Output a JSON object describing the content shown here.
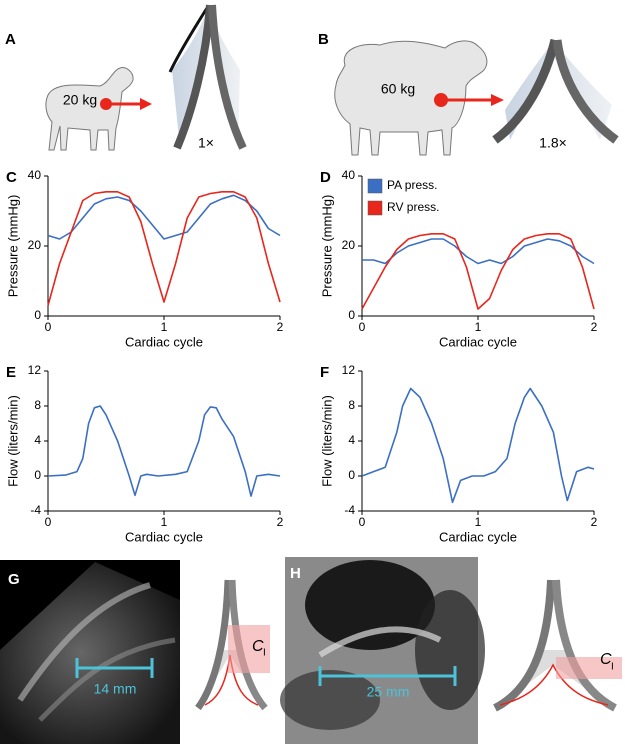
{
  "chart_data": [
    {
      "type": "line",
      "panel": "C",
      "xlabel": "Cardiac cycle",
      "ylabel": "Pressure (mmHg)",
      "xlim": [
        0,
        2
      ],
      "ylim": [
        0,
        40
      ],
      "xticks": [
        0,
        1,
        2
      ],
      "yticks": [
        0,
        20,
        40
      ],
      "x": [
        0,
        0.1,
        0.2,
        0.3,
        0.4,
        0.5,
        0.6,
        0.7,
        0.8,
        0.9,
        1.0,
        1.1,
        1.2,
        1.3,
        1.4,
        1.5,
        1.6,
        1.7,
        1.8,
        1.9,
        2.0
      ],
      "series": [
        {
          "color": "#3b6fc4",
          "values": [
            23,
            22,
            24,
            28,
            32,
            33.5,
            34,
            33,
            30,
            26,
            22,
            23,
            24,
            28,
            32,
            33.5,
            34.5,
            33,
            30,
            25,
            23
          ]
        },
        {
          "color": "#e8261c",
          "values": [
            3,
            15,
            24,
            33,
            35,
            35.5,
            35.5,
            34,
            27,
            15,
            4,
            15,
            28,
            34,
            35,
            35.5,
            35.5,
            34,
            28,
            15,
            4
          ]
        }
      ]
    },
    {
      "type": "line",
      "panel": "D",
      "xlabel": "Cardiac cycle",
      "ylabel": "Pressure (mmHg)",
      "xlim": [
        0,
        2
      ],
      "ylim": [
        0,
        40
      ],
      "xticks": [
        0,
        1,
        2
      ],
      "yticks": [
        0,
        20,
        40
      ],
      "legend": "upper left",
      "x": [
        0,
        0.1,
        0.2,
        0.3,
        0.4,
        0.5,
        0.6,
        0.7,
        0.8,
        0.9,
        1.0,
        1.1,
        1.2,
        1.3,
        1.4,
        1.5,
        1.6,
        1.7,
        1.8,
        1.9,
        2.0
      ],
      "series": [
        {
          "name": "PA press.",
          "color": "#3b6fc4",
          "values": [
            16,
            16,
            15,
            18,
            20,
            21,
            22,
            22,
            20,
            17,
            15,
            16,
            15,
            17,
            20,
            21,
            22,
            21.5,
            20,
            17,
            15
          ]
        },
        {
          "name": "RV press.",
          "color": "#e8261c",
          "values": [
            2,
            8,
            14,
            19,
            22,
            23,
            23.5,
            23.5,
            22,
            14,
            2,
            5,
            13,
            19,
            22,
            23,
            23.5,
            23.5,
            22,
            14,
            2
          ]
        }
      ]
    },
    {
      "type": "line",
      "panel": "E",
      "xlabel": "Cardiac cycle",
      "ylabel": "Flow (liters/min)",
      "xlim": [
        0,
        2
      ],
      "ylim": [
        -4,
        12
      ],
      "xticks": [
        0,
        1,
        2
      ],
      "yticks": [
        -4,
        0,
        4,
        8,
        12
      ],
      "x": [
        0,
        0.15,
        0.25,
        0.3,
        0.35,
        0.4,
        0.45,
        0.5,
        0.55,
        0.6,
        0.65,
        0.7,
        0.75,
        0.8,
        0.85,
        0.95,
        1.1,
        1.2,
        1.3,
        1.35,
        1.4,
        1.45,
        1.5,
        1.6,
        1.65,
        1.7,
        1.75,
        1.8,
        1.9,
        2.0
      ],
      "series": [
        {
          "color": "#3b6fc4",
          "values": [
            0,
            0.1,
            0.5,
            2,
            6,
            7.8,
            8,
            7,
            5.5,
            4,
            2,
            0,
            -2.2,
            0,
            0.2,
            0,
            0.2,
            0.5,
            4,
            7,
            7.9,
            7.8,
            6.5,
            4.5,
            2.5,
            0.5,
            -2.3,
            0,
            0.2,
            0
          ]
        }
      ]
    },
    {
      "type": "line",
      "panel": "F",
      "xlabel": "Cardiac cycle",
      "ylabel": "Flow (liters/min)",
      "xlim": [
        0,
        2
      ],
      "ylim": [
        -4,
        12
      ],
      "xticks": [
        0,
        1,
        2
      ],
      "yticks": [
        -4,
        0,
        4,
        8,
        12
      ],
      "x": [
        0,
        0.1,
        0.2,
        0.3,
        0.35,
        0.42,
        0.5,
        0.6,
        0.7,
        0.78,
        0.85,
        0.95,
        1.05,
        1.15,
        1.25,
        1.32,
        1.4,
        1.45,
        1.55,
        1.65,
        1.72,
        1.77,
        1.85,
        1.95,
        2.0
      ],
      "series": [
        {
          "color": "#3b6fc4",
          "values": [
            0,
            0.5,
            1,
            5,
            8,
            10,
            9,
            6,
            2,
            -3,
            -0.5,
            0,
            0,
            0.5,
            2,
            6,
            9,
            10,
            8,
            5,
            0,
            -2.8,
            0.5,
            1,
            0.8
          ]
        }
      ]
    }
  ],
  "panels_top": [
    {
      "letter": "A",
      "weight": "20 kg",
      "scale": "1×"
    },
    {
      "letter": "B",
      "weight": "60 kg",
      "scale": "1.8×"
    }
  ],
  "panels_bottom": [
    {
      "letter": "G",
      "scale_bar": "14 mm",
      "label": "C",
      "subscript": "I"
    },
    {
      "letter": "H",
      "scale_bar": "25 mm",
      "label": "C",
      "subscript": "I"
    }
  ]
}
